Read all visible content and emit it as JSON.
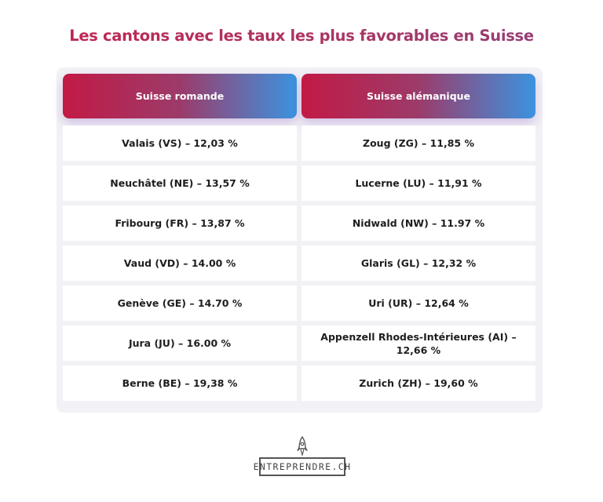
{
  "title": "Les cantons avec les taux les plus favorables en Suisse",
  "table": {
    "headers": [
      "Suisse romande",
      "Suisse alémanique"
    ],
    "rows": [
      [
        "Valais (VS) – 12,03 %",
        "Zoug (ZG) – 11,85 %"
      ],
      [
        "Neuchâtel (NE) – 13,57 %",
        "Lucerne (LU) – 11,91 %"
      ],
      [
        "Fribourg (FR) – 13,87 %",
        "Nidwald (NW) – 11.97 %"
      ],
      [
        "Vaud (VD) – 14.00 %",
        "Glaris (GL) – 12,32 %"
      ],
      [
        "Genève (GE) – 14.70 %",
        "Uri (UR) – 12,64 %"
      ],
      [
        "Jura (JU) – 16.00 %",
        "Appenzell Rhodes-Intérieures (AI) – 12,66 %"
      ],
      [
        "Berne (BE) – 19,38 %",
        "Zurich (ZH) – 19,60 %"
      ]
    ]
  },
  "logo": {
    "text": "ENTREPRENDRE.CH",
    "icon": "rocket-icon"
  },
  "colors": {
    "title_gradient_start": "#c4224f",
    "header_gradient_start": "#c21a45",
    "header_gradient_end": "#3b93e0"
  }
}
